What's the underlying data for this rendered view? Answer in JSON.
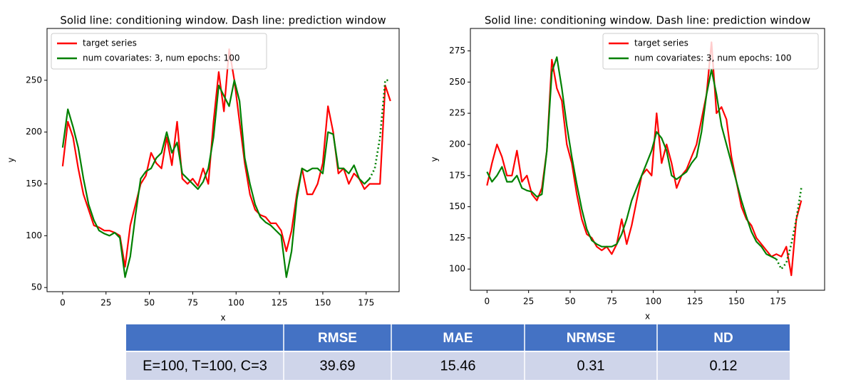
{
  "chart_data": [
    {
      "type": "line",
      "title": "Solid line: conditioning window. Dash line: prediction window",
      "xlabel": "x",
      "ylabel": "y",
      "x": [
        0,
        3,
        6,
        9,
        12,
        15,
        18,
        21,
        24,
        27,
        30,
        33,
        36,
        39,
        42,
        45,
        48,
        51,
        54,
        57,
        60,
        63,
        66,
        69,
        72,
        75,
        78,
        81,
        84,
        87,
        90,
        93,
        96,
        99,
        102,
        105,
        108,
        111,
        114,
        117,
        120,
        123,
        126,
        129,
        132,
        135,
        138,
        141,
        144,
        147,
        150,
        153,
        156,
        159,
        162,
        165,
        168,
        171,
        174,
        177,
        180,
        183,
        186,
        189
      ],
      "xlim": [
        -9,
        194
      ],
      "xticks": [
        0,
        25,
        50,
        75,
        100,
        125,
        150,
        175
      ],
      "ylim": [
        46,
        300
      ],
      "yticks": [
        50,
        100,
        150,
        200,
        250
      ],
      "legend": "upper left",
      "series": [
        {
          "name": "target series",
          "color": "#ff0000",
          "linestyle": "solid",
          "values": [
            167,
            210,
            195,
            165,
            140,
            125,
            110,
            108,
            105,
            105,
            103,
            100,
            70,
            110,
            130,
            150,
            158,
            180,
            170,
            165,
            195,
            168,
            210,
            155,
            150,
            155,
            148,
            165,
            150,
            210,
            258,
            220,
            280,
            250,
            210,
            170,
            140,
            125,
            120,
            118,
            112,
            112,
            105,
            85,
            105,
            140,
            165,
            140,
            140,
            150,
            170,
            225,
            200,
            160,
            165,
            150,
            160,
            155,
            145,
            150,
            150,
            150,
            245,
            230
          ]
        },
        {
          "name": "num covariates: 3, num epochs: 100",
          "color": "#008000",
          "linestyle": "solid",
          "values": [
            185,
            222,
            205,
            185,
            155,
            130,
            115,
            105,
            102,
            100,
            103,
            98,
            60,
            80,
            120,
            155,
            162,
            165,
            175,
            180,
            200,
            180,
            190,
            160,
            155,
            150,
            145,
            152,
            165,
            195,
            245,
            235,
            225,
            250,
            230,
            175,
            150,
            130,
            118,
            113,
            110,
            105,
            100,
            60,
            85,
            135,
            165,
            162,
            165,
            165,
            160,
            200,
            198,
            165,
            165,
            160,
            168,
            155,
            150,
            155,
            null,
            null,
            null,
            null
          ]
        },
        {
          "color": "#008000",
          "linestyle": "dotted",
          "values": [
            null,
            null,
            null,
            null,
            null,
            null,
            null,
            null,
            null,
            null,
            null,
            null,
            null,
            null,
            null,
            null,
            null,
            null,
            null,
            null,
            null,
            null,
            null,
            null,
            null,
            null,
            null,
            null,
            null,
            null,
            null,
            null,
            null,
            null,
            null,
            null,
            null,
            null,
            null,
            null,
            null,
            null,
            null,
            null,
            null,
            null,
            null,
            null,
            null,
            null,
            null,
            null,
            null,
            null,
            null,
            null,
            null,
            null,
            null,
            155,
            165,
            195,
            250,
            250
          ]
        }
      ]
    },
    {
      "type": "line",
      "title": "Solid line: conditioning window. Dash line: prediction window",
      "xlabel": "x",
      "ylabel": "y",
      "x": [
        0,
        3,
        6,
        9,
        12,
        15,
        18,
        21,
        24,
        27,
        30,
        33,
        36,
        39,
        42,
        45,
        48,
        51,
        54,
        57,
        60,
        63,
        66,
        69,
        72,
        75,
        78,
        81,
        84,
        87,
        90,
        93,
        96,
        99,
        102,
        105,
        108,
        111,
        114,
        117,
        120,
        123,
        126,
        129,
        132,
        135,
        138,
        141,
        144,
        147,
        150,
        153,
        156,
        159,
        162,
        165,
        168,
        171,
        174,
        177,
        180,
        183,
        186,
        189
      ],
      "xlim": [
        -10,
        203
      ],
      "xticks": [
        0,
        25,
        50,
        75,
        100,
        125,
        150,
        175
      ],
      "ylim": [
        83,
        293
      ],
      "yticks": [
        100,
        125,
        150,
        175,
        200,
        225,
        250,
        275
      ],
      "legend": "upper right",
      "series": [
        {
          "name": "target series",
          "color": "#ff0000",
          "linestyle": "solid",
          "values": [
            167,
            185,
            200,
            190,
            175,
            175,
            195,
            170,
            175,
            160,
            155,
            165,
            195,
            268,
            245,
            235,
            200,
            185,
            160,
            140,
            128,
            125,
            118,
            115,
            118,
            112,
            120,
            140,
            120,
            135,
            155,
            175,
            180,
            175,
            225,
            185,
            200,
            185,
            165,
            175,
            180,
            190,
            200,
            220,
            240,
            282,
            225,
            230,
            220,
            190,
            170,
            150,
            140,
            135,
            125,
            120,
            115,
            110,
            112,
            110,
            118,
            95,
            140,
            155
          ]
        },
        {
          "name": "num covariates: 3, num epochs: 100",
          "color": "#008000",
          "linestyle": "solid",
          "values": [
            178,
            170,
            175,
            182,
            170,
            170,
            175,
            165,
            163,
            162,
            158,
            160,
            195,
            258,
            270,
            245,
            215,
            190,
            168,
            148,
            132,
            123,
            120,
            118,
            118,
            118,
            120,
            128,
            140,
            155,
            165,
            175,
            185,
            195,
            210,
            205,
            195,
            175,
            172,
            175,
            178,
            185,
            190,
            210,
            240,
            260,
            240,
            215,
            200,
            185,
            170,
            155,
            142,
            130,
            122,
            118,
            112,
            110,
            108,
            null,
            null,
            null,
            null,
            null
          ]
        },
        {
          "color": "#008000",
          "linestyle": "dotted",
          "values": [
            null,
            null,
            null,
            null,
            null,
            null,
            null,
            null,
            null,
            null,
            null,
            null,
            null,
            null,
            null,
            null,
            null,
            null,
            null,
            null,
            null,
            null,
            null,
            null,
            null,
            null,
            null,
            null,
            null,
            null,
            null,
            null,
            null,
            null,
            null,
            null,
            null,
            null,
            null,
            null,
            null,
            null,
            null,
            null,
            null,
            null,
            null,
            null,
            null,
            null,
            null,
            null,
            null,
            null,
            null,
            null,
            null,
            null,
            108,
            100,
            105,
            120,
            140,
            165
          ]
        }
      ]
    }
  ],
  "table": {
    "columns": [
      "RMSE",
      "MAE",
      "NRMSE",
      "ND"
    ],
    "rows": [
      {
        "label": "E=100, T=100, C=3",
        "values": [
          39.69,
          15.46,
          0.31,
          0.12
        ]
      }
    ]
  }
}
